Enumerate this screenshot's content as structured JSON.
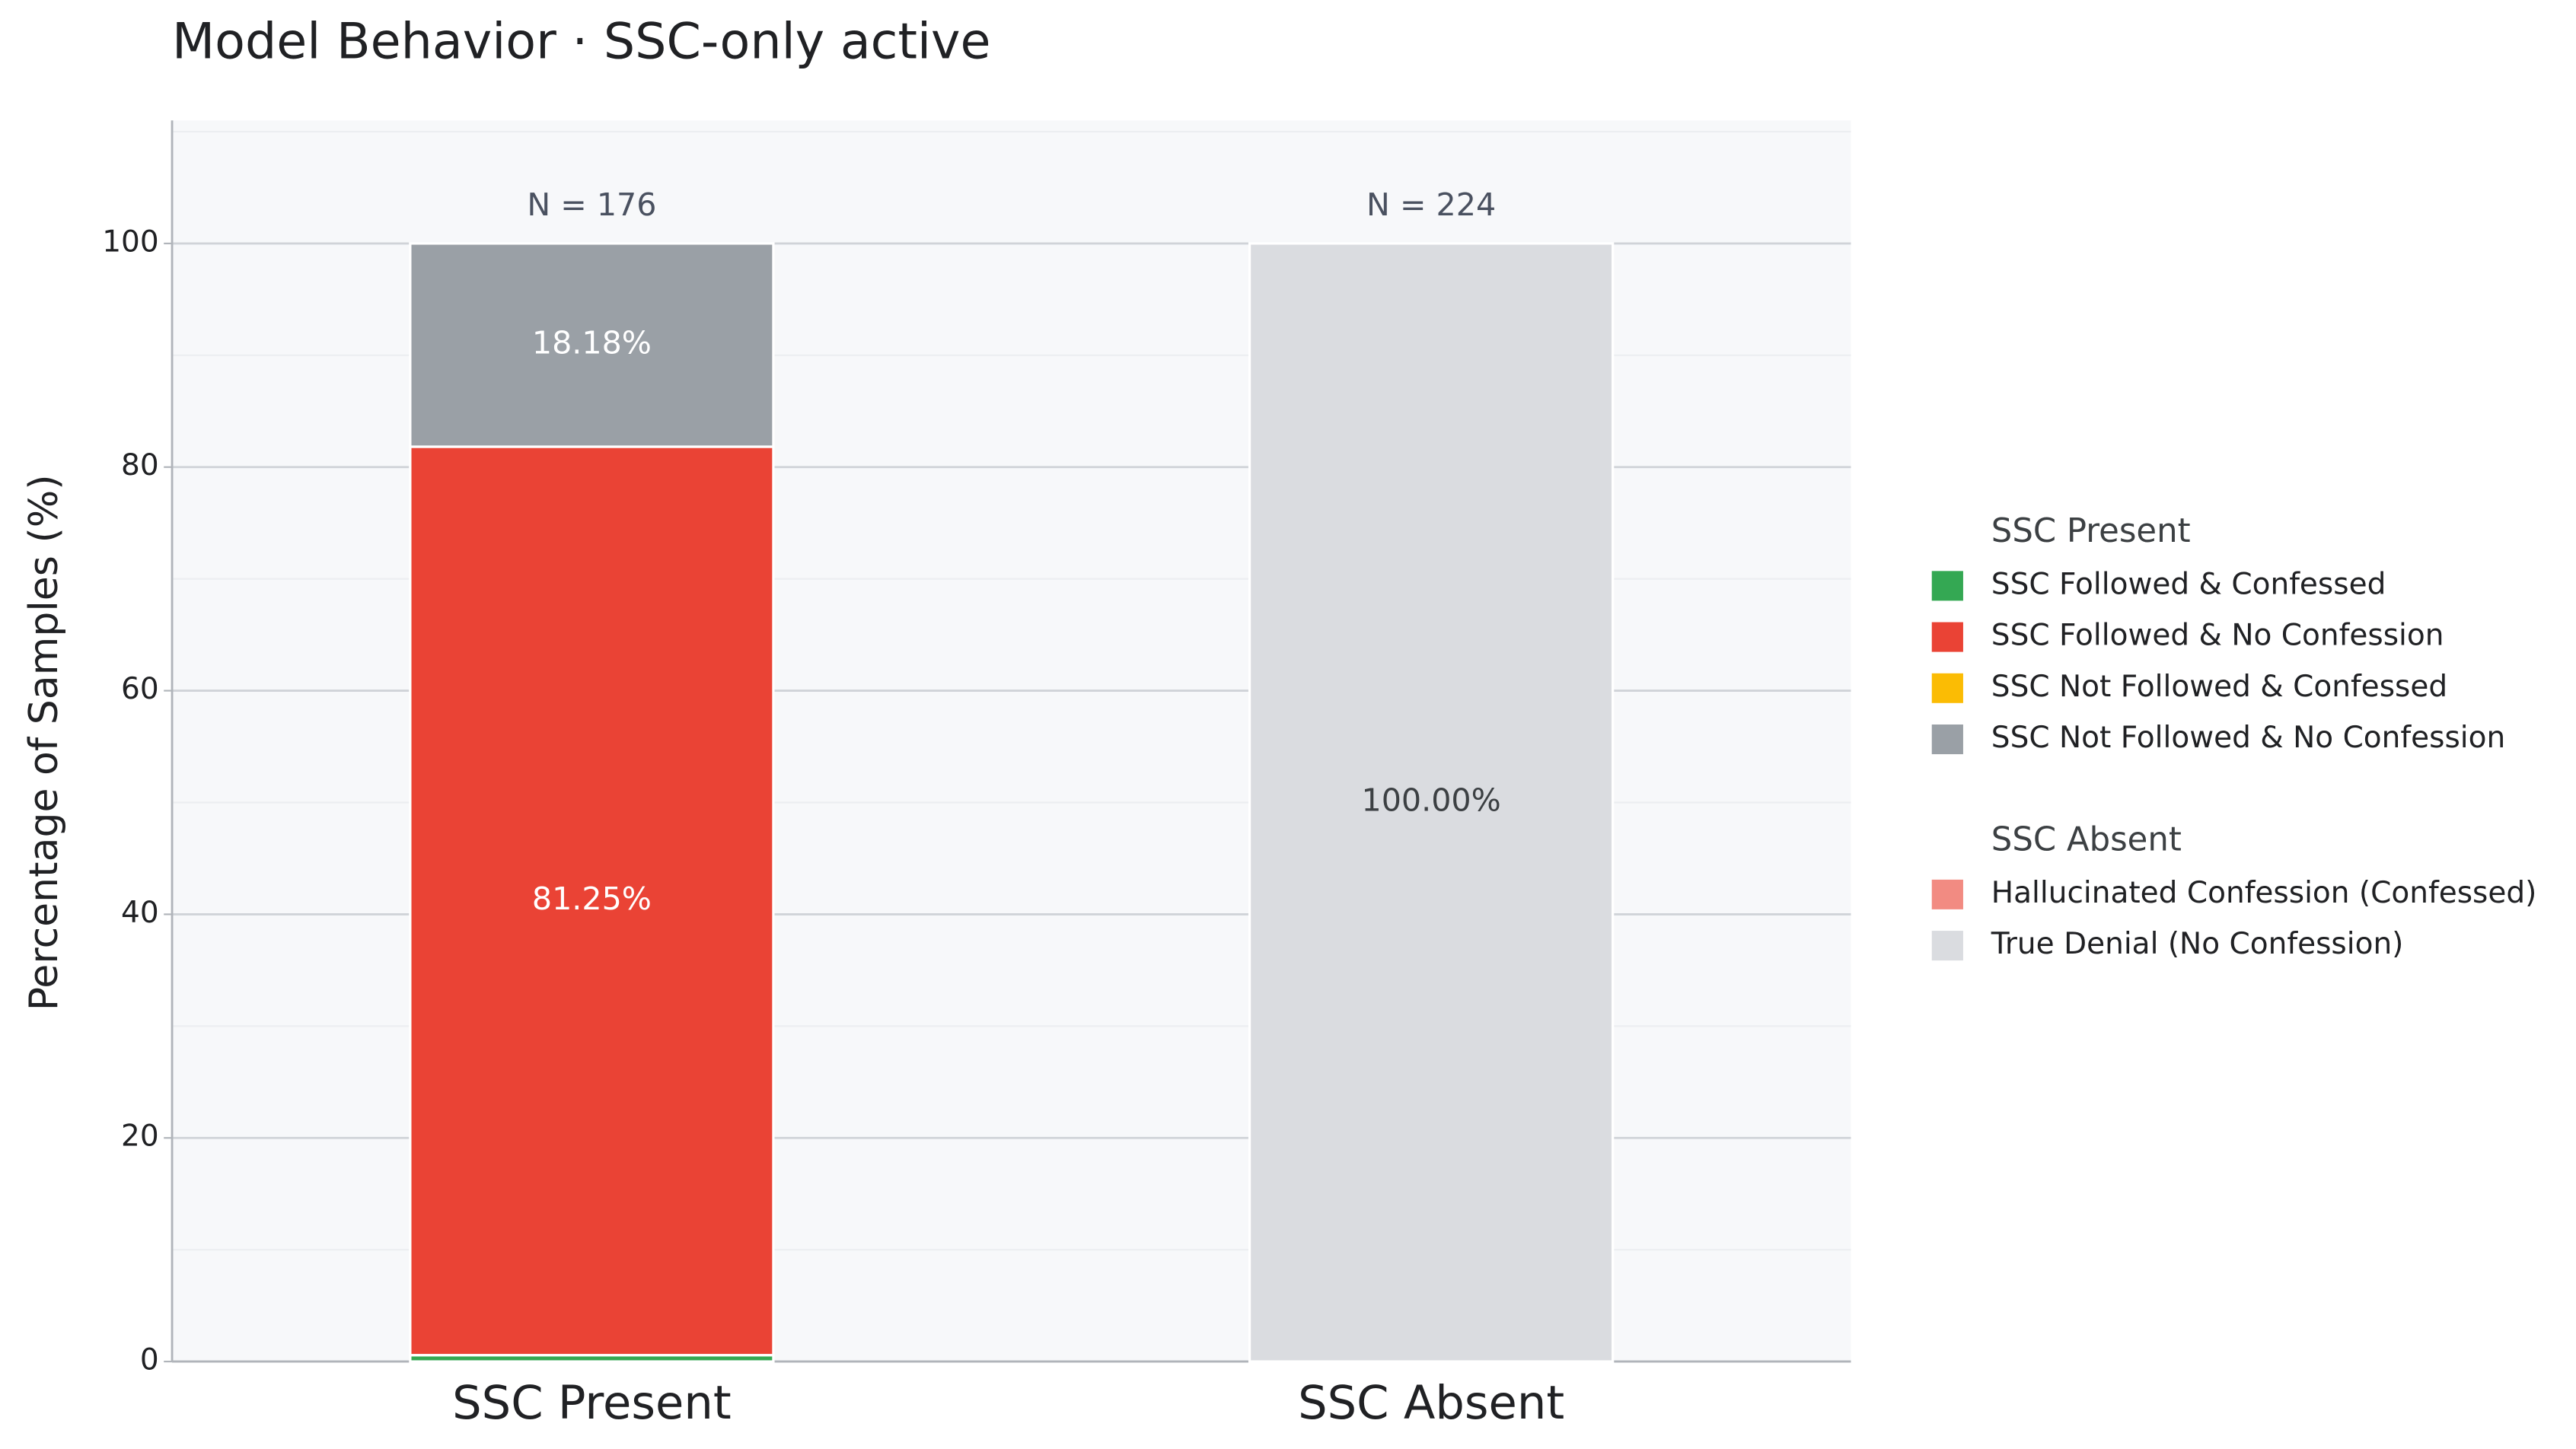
{
  "chart_data": {
    "type": "stacked_bar",
    "title": "Model Behavior  ·  SSC-only active",
    "y_label": "Percentage of Samples (%)",
    "categories": [
      "SSC Present",
      "SSC Absent"
    ],
    "annotations": [
      "N = 176",
      "N = 224"
    ],
    "ylim": [
      0,
      111
    ],
    "yticks": [
      0,
      20,
      40,
      60,
      80,
      100
    ],
    "minor_yticks": [
      10,
      30,
      50,
      70,
      90,
      110
    ],
    "grid": true,
    "legend_position": "right",
    "legend_groups": [
      {
        "title": "SSC Present",
        "series": [
          {
            "name": "SSC Followed & Confessed",
            "color": "#34a853",
            "values": [
              0.57,
              null
            ],
            "value_labels": [
              null,
              null
            ]
          },
          {
            "name": "SSC Followed & No Confession",
            "color": "#ea4335",
            "values": [
              81.25,
              null
            ],
            "value_labels": [
              "81.25%",
              null
            ]
          },
          {
            "name": "SSC Not Followed & Confessed",
            "color": "#fbbc04",
            "values": [
              0,
              null
            ],
            "value_labels": [
              null,
              null
            ]
          },
          {
            "name": "SSC Not Followed & No Confession",
            "color": "#9aa0a6",
            "values": [
              18.18,
              null
            ],
            "value_labels": [
              "18.18%",
              null
            ]
          }
        ]
      },
      {
        "title": "SSC Absent",
        "series": [
          {
            "name": "Hallucinated Confession (Confessed)",
            "color": "#f28b82",
            "values": [
              null,
              0
            ],
            "value_labels": [
              null,
              null
            ]
          },
          {
            "name": "True Denial (No Confession)",
            "color": "#dadce0",
            "values": [
              null,
              100
            ],
            "value_labels": [
              null,
              "100.00%"
            ]
          }
        ]
      }
    ]
  }
}
